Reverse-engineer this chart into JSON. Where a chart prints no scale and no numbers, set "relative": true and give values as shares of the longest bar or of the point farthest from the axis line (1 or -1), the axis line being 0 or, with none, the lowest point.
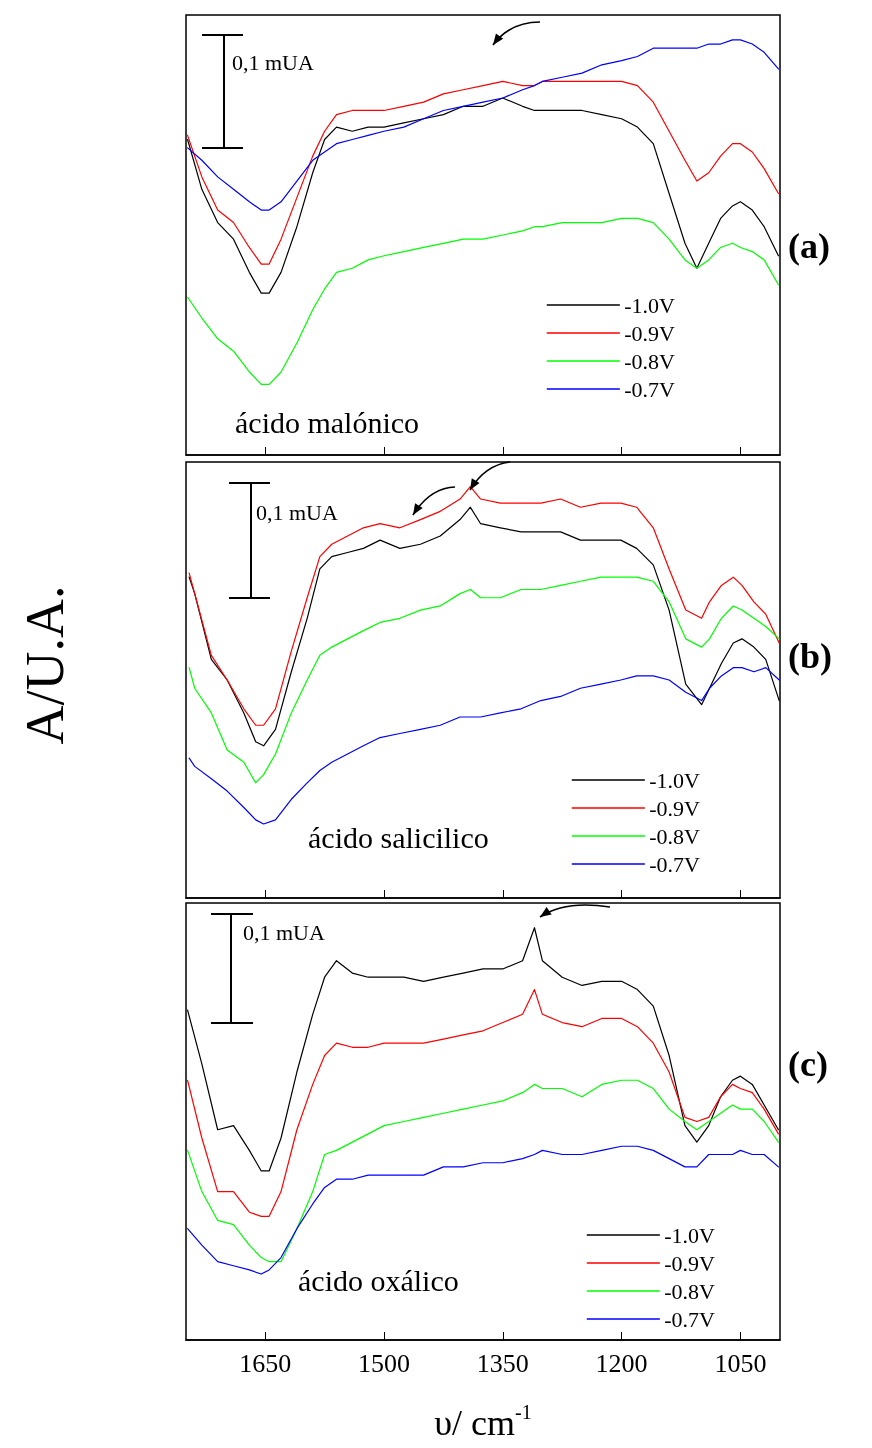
{
  "chart_data": [
    {
      "type": "line",
      "relative": true,
      "xlim": [
        1750,
        1000
      ],
      "xticks": [
        1650,
        1500,
        1350,
        1200,
        1050
      ],
      "tick_labels": false,
      "legend": "bottom right",
      "marker": "none",
      "line_style": "solid",
      "annotations": [
        "0,1 mUA",
        "ácido malónico",
        "(a)"
      ],
      "x": [
        1748,
        1730,
        1710,
        1690,
        1670,
        1655,
        1645,
        1630,
        1610,
        1590,
        1575,
        1560,
        1540,
        1520,
        1500,
        1475,
        1450,
        1425,
        1400,
        1375,
        1350,
        1325,
        1310,
        1300,
        1275,
        1250,
        1225,
        1200,
        1180,
        1160,
        1140,
        1120,
        1105,
        1090,
        1075,
        1060,
        1050,
        1035,
        1020,
        1002
      ],
      "series": [
        {
          "name": "-1.0V",
          "color": "#000000",
          "values": [
            0.76,
            0.64,
            0.56,
            0.52,
            0.44,
            0.39,
            0.39,
            0.44,
            0.55,
            0.68,
            0.76,
            0.79,
            0.78,
            0.79,
            0.79,
            0.8,
            0.81,
            0.82,
            0.84,
            0.84,
            0.86,
            0.84,
            0.83,
            0.83,
            0.83,
            0.83,
            0.82,
            0.81,
            0.79,
            0.75,
            0.63,
            0.51,
            0.45,
            0.51,
            0.57,
            0.6,
            0.61,
            0.59,
            0.55,
            0.48
          ]
        },
        {
          "name": "-0.9V",
          "color": "#ff0000",
          "values": [
            0.77,
            0.67,
            0.59,
            0.56,
            0.5,
            0.46,
            0.46,
            0.52,
            0.62,
            0.72,
            0.78,
            0.82,
            0.83,
            0.83,
            0.83,
            0.84,
            0.85,
            0.87,
            0.88,
            0.89,
            0.9,
            0.89,
            0.89,
            0.9,
            0.9,
            0.9,
            0.9,
            0.9,
            0.89,
            0.85,
            0.78,
            0.71,
            0.66,
            0.68,
            0.72,
            0.75,
            0.75,
            0.73,
            0.69,
            0.63
          ]
        },
        {
          "name": "-0.8V",
          "color": "#00ff00",
          "values": [
            0.38,
            0.33,
            0.28,
            0.25,
            0.2,
            0.17,
            0.17,
            0.2,
            0.27,
            0.35,
            0.4,
            0.44,
            0.45,
            0.47,
            0.48,
            0.49,
            0.5,
            0.51,
            0.52,
            0.52,
            0.53,
            0.54,
            0.55,
            0.55,
            0.56,
            0.56,
            0.56,
            0.57,
            0.57,
            0.56,
            0.52,
            0.47,
            0.45,
            0.47,
            0.5,
            0.51,
            0.5,
            0.49,
            0.47,
            0.41
          ]
        },
        {
          "name": "-0.7V",
          "color": "#0000ff",
          "values": [
            0.74,
            0.71,
            0.67,
            0.64,
            0.61,
            0.59,
            0.59,
            0.61,
            0.66,
            0.71,
            0.73,
            0.75,
            0.76,
            0.77,
            0.78,
            0.79,
            0.81,
            0.83,
            0.84,
            0.85,
            0.86,
            0.88,
            0.89,
            0.9,
            0.91,
            0.92,
            0.94,
            0.95,
            0.96,
            0.98,
            0.98,
            0.98,
            0.98,
            0.99,
            0.99,
            1.0,
            1.0,
            0.99,
            0.97,
            0.93
          ]
        }
      ]
    },
    {
      "type": "line",
      "relative": true,
      "xlim": [
        1750,
        1000
      ],
      "xticks": [
        1650,
        1500,
        1350,
        1200,
        1050
      ],
      "tick_labels": false,
      "legend": "bottom right",
      "marker": "none",
      "line_style": "solid",
      "ylabel": "A/U.A.",
      "annotations": [
        "0,1 mUA",
        "ácido salicilico",
        "(b)"
      ],
      "x": [
        1746,
        1739,
        1718,
        1698,
        1677,
        1662,
        1652,
        1637,
        1617,
        1597,
        1581,
        1566,
        1546,
        1526,
        1505,
        1480,
        1454,
        1429,
        1404,
        1391,
        1378,
        1353,
        1327,
        1302,
        1277,
        1252,
        1226,
        1201,
        1181,
        1160,
        1140,
        1119,
        1099,
        1089,
        1074,
        1059,
        1048,
        1033,
        1018,
        1001
      ],
      "series": [
        {
          "name": "-1.0V",
          "color": "#000000",
          "values": [
            0.78,
            0.74,
            0.58,
            0.53,
            0.45,
            0.38,
            0.37,
            0.41,
            0.55,
            0.68,
            0.8,
            0.83,
            0.84,
            0.85,
            0.87,
            0.85,
            0.86,
            0.88,
            0.92,
            0.95,
            0.91,
            0.9,
            0.89,
            0.89,
            0.89,
            0.87,
            0.87,
            0.87,
            0.85,
            0.81,
            0.7,
            0.52,
            0.47,
            0.51,
            0.57,
            0.62,
            0.63,
            0.61,
            0.58,
            0.48
          ]
        },
        {
          "name": "-0.9V",
          "color": "#ff0000",
          "values": [
            0.79,
            0.74,
            0.59,
            0.53,
            0.46,
            0.42,
            0.42,
            0.46,
            0.6,
            0.73,
            0.83,
            0.86,
            0.88,
            0.9,
            0.91,
            0.9,
            0.92,
            0.94,
            0.97,
            1.0,
            0.97,
            0.96,
            0.96,
            0.96,
            0.97,
            0.95,
            0.96,
            0.96,
            0.95,
            0.9,
            0.8,
            0.7,
            0.68,
            0.72,
            0.76,
            0.78,
            0.76,
            0.72,
            0.69,
            0.62
          ]
        },
        {
          "name": "-0.8V",
          "color": "#00ff00",
          "values": [
            0.56,
            0.51,
            0.45,
            0.36,
            0.33,
            0.28,
            0.3,
            0.35,
            0.45,
            0.53,
            0.59,
            0.61,
            0.63,
            0.65,
            0.67,
            0.68,
            0.7,
            0.71,
            0.74,
            0.75,
            0.73,
            0.73,
            0.75,
            0.75,
            0.76,
            0.77,
            0.78,
            0.78,
            0.78,
            0.77,
            0.72,
            0.63,
            0.61,
            0.63,
            0.68,
            0.71,
            0.7,
            0.68,
            0.66,
            0.63
          ]
        },
        {
          "name": "-0.7V",
          "color": "#0000ff",
          "values": [
            0.34,
            0.32,
            0.29,
            0.26,
            0.22,
            0.19,
            0.18,
            0.19,
            0.24,
            0.28,
            0.31,
            0.33,
            0.35,
            0.37,
            0.39,
            0.4,
            0.41,
            0.42,
            0.44,
            0.44,
            0.44,
            0.45,
            0.46,
            0.48,
            0.49,
            0.51,
            0.52,
            0.53,
            0.54,
            0.54,
            0.53,
            0.5,
            0.48,
            0.51,
            0.54,
            0.56,
            0.56,
            0.55,
            0.56,
            0.53
          ]
        }
      ]
    },
    {
      "type": "line",
      "relative": true,
      "xlim": [
        1750,
        1000
      ],
      "xticks": [
        1650,
        1500,
        1350,
        1200,
        1050
      ],
      "tick_labels": "x",
      "legend": "bottom right",
      "marker": "none",
      "line_style": "solid",
      "xlabel": "υ/ cm$^{-1}$",
      "annotations": [
        "0,1 mUA",
        "ácido oxálico",
        "(c)"
      ],
      "x": [
        1748,
        1730,
        1710,
        1690,
        1670,
        1655,
        1645,
        1630,
        1610,
        1590,
        1575,
        1560,
        1540,
        1520,
        1500,
        1475,
        1450,
        1425,
        1400,
        1375,
        1350,
        1325,
        1310,
        1300,
        1275,
        1250,
        1225,
        1200,
        1180,
        1160,
        1140,
        1120,
        1105,
        1090,
        1075,
        1060,
        1050,
        1035,
        1020,
        1002
      ],
      "series": [
        {
          "name": "-1.0V",
          "color": "#000000",
          "values": [
            0.8,
            0.67,
            0.51,
            0.52,
            0.46,
            0.41,
            0.41,
            0.49,
            0.65,
            0.79,
            0.88,
            0.92,
            0.89,
            0.88,
            0.88,
            0.88,
            0.87,
            0.88,
            0.89,
            0.9,
            0.9,
            0.92,
            1.0,
            0.92,
            0.88,
            0.86,
            0.87,
            0.87,
            0.85,
            0.81,
            0.69,
            0.52,
            0.48,
            0.52,
            0.59,
            0.63,
            0.64,
            0.62,
            0.57,
            0.51
          ]
        },
        {
          "name": "-0.9V",
          "color": "#ff0000",
          "values": [
            0.63,
            0.49,
            0.36,
            0.36,
            0.31,
            0.3,
            0.3,
            0.36,
            0.51,
            0.62,
            0.69,
            0.72,
            0.71,
            0.71,
            0.72,
            0.72,
            0.72,
            0.73,
            0.74,
            0.75,
            0.77,
            0.79,
            0.85,
            0.79,
            0.77,
            0.76,
            0.78,
            0.78,
            0.76,
            0.72,
            0.65,
            0.54,
            0.53,
            0.54,
            0.59,
            0.62,
            0.61,
            0.6,
            0.56,
            0.5
          ]
        },
        {
          "name": "-0.8V",
          "color": "#00ff00",
          "values": [
            0.46,
            0.36,
            0.29,
            0.28,
            0.23,
            0.2,
            0.19,
            0.19,
            0.27,
            0.36,
            0.45,
            0.46,
            0.48,
            0.5,
            0.52,
            0.53,
            0.54,
            0.55,
            0.56,
            0.57,
            0.58,
            0.6,
            0.62,
            0.61,
            0.61,
            0.59,
            0.62,
            0.63,
            0.63,
            0.61,
            0.56,
            0.53,
            0.51,
            0.53,
            0.55,
            0.57,
            0.56,
            0.56,
            0.53,
            0.48
          ]
        },
        {
          "name": "-0.7V",
          "color": "#0000ff",
          "values": [
            0.27,
            0.23,
            0.19,
            0.18,
            0.17,
            0.16,
            0.17,
            0.2,
            0.27,
            0.33,
            0.37,
            0.39,
            0.39,
            0.4,
            0.4,
            0.4,
            0.4,
            0.42,
            0.42,
            0.43,
            0.43,
            0.44,
            0.45,
            0.46,
            0.45,
            0.45,
            0.46,
            0.47,
            0.47,
            0.46,
            0.44,
            0.42,
            0.42,
            0.45,
            0.45,
            0.45,
            0.46,
            0.45,
            0.45,
            0.42
          ]
        }
      ]
    }
  ]
}
